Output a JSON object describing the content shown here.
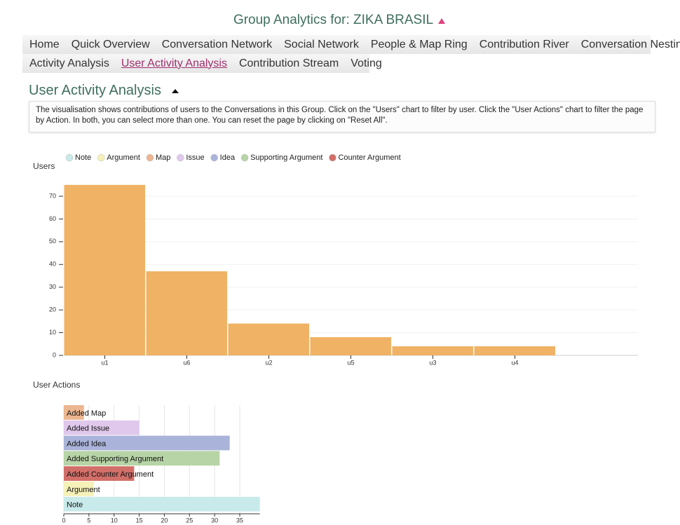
{
  "header": {
    "title": "Group Analytics for: ZIKA BRASIL"
  },
  "nav": {
    "items": [
      "Home",
      "Quick Overview",
      "Conversation Network",
      "Social Network",
      "People & Map Ring",
      "Contribution River",
      "Conversation Nesting",
      "Activity Analysis",
      "User Activity Analysis",
      "Contribution Stream",
      "Voting"
    ],
    "active": "User Activity Analysis"
  },
  "section": {
    "title": "User Activity Analysis",
    "description": "The visualisation shows contributions of users to the Conversations in this Group. Click on the \"Users\" chart to filter by user. Click the \"User Actions\" chart to filter the page by Action. In both, you can select more than one. You can reset the page by clicking on \"Reset All\"."
  },
  "chart_data": [
    {
      "type": "bar",
      "title": "Users",
      "legend": [
        {
          "name": "Note",
          "color": "#c8eaea"
        },
        {
          "name": "Argument",
          "color": "#f6f1b8"
        },
        {
          "name": "Map",
          "color": "#ecb690"
        },
        {
          "name": "Issue",
          "color": "#e0c8ec"
        },
        {
          "name": "Idea",
          "color": "#aab4da"
        },
        {
          "name": "Supporting Argument",
          "color": "#b7d4a6"
        },
        {
          "name": "Counter Argument",
          "color": "#d26f68"
        }
      ],
      "categories": [
        "u1",
        "u6",
        "u2",
        "u5",
        "u3",
        "u4"
      ],
      "values": [
        75,
        37,
        14,
        8,
        4,
        4
      ],
      "color": "#f0b264",
      "ylim": [
        0,
        75
      ],
      "yticks": [
        0,
        10,
        20,
        30,
        40,
        50,
        60,
        70
      ],
      "grid": true
    },
    {
      "type": "row",
      "title": "User Actions",
      "categories": [
        "Added Map",
        "Added Issue",
        "Added Idea",
        "Added Supporting Argument",
        "Added Counter Argument",
        "Argument",
        "Note"
      ],
      "values": [
        4,
        15,
        33,
        31,
        14,
        6,
        39
      ],
      "colors": [
        "#ecb690",
        "#e0c8ec",
        "#aab4da",
        "#b7d4a6",
        "#d26f68",
        "#f6f1b8",
        "#c8eaea"
      ],
      "xlim": [
        0,
        39
      ],
      "xticks": [
        0,
        5,
        10,
        15,
        20,
        25,
        30,
        35
      ],
      "grid": true
    }
  ]
}
